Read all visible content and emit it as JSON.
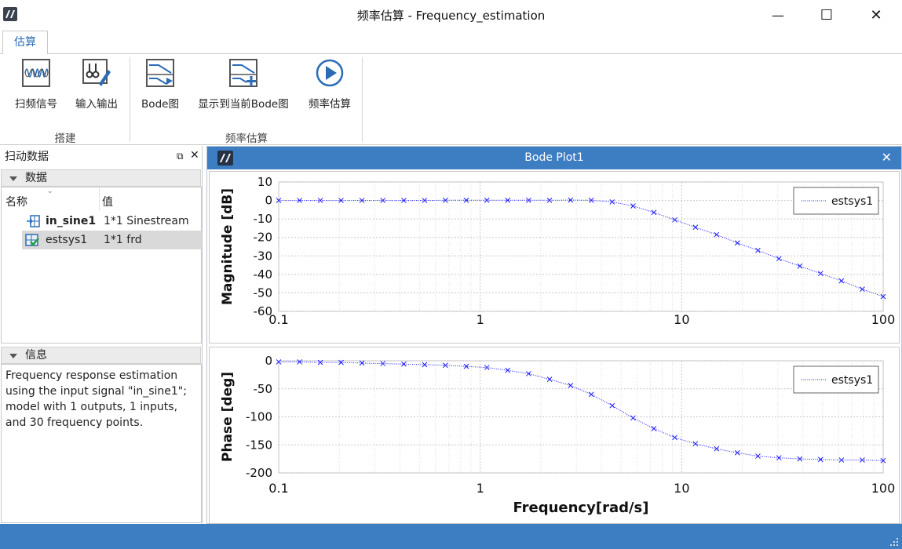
{
  "window": {
    "title": "频率估算 - Frequency_estimation",
    "min": "—",
    "max": "☐",
    "close": "✕"
  },
  "ribbon": {
    "tab": "估算",
    "buttons": {
      "sweep": "扫频信号",
      "io": "输入输出",
      "bode": "Bode图",
      "show_bode": "显示到当前Bode图",
      "estimate": "频率估算"
    },
    "groups": {
      "build": "搭建",
      "freq_est": "频率估算"
    }
  },
  "left_panel": {
    "title": "扫动数据",
    "data_section": "数据",
    "columns": {
      "name": "名称",
      "value": "值"
    },
    "items": [
      {
        "name": "in_sine1",
        "value": "1*1 Sinestream"
      },
      {
        "name": "estsys1",
        "value": "1*1 frd"
      }
    ],
    "info_section": "信息",
    "info_text": "Frequency response estimation using the input signal \"in_sine1\"; model with 1 outputs, 1 inputs, and 30 frequency points."
  },
  "bode": {
    "title": "Bode Plot1",
    "close": "✕"
  },
  "chart_data": [
    {
      "type": "line",
      "ylabel": "Magnitude [dB]",
      "xscale": "log",
      "xlim": [
        0.1,
        100
      ],
      "ylim": [
        -60,
        10
      ],
      "xticks": [
        "0.1",
        "1",
        "10",
        "100"
      ],
      "yticks": [
        10,
        0,
        -10,
        -20,
        -30,
        -40,
        -50,
        -60
      ],
      "grid": true,
      "legend": "top-right",
      "series": [
        {
          "name": "estsys1",
          "color": "#1a1aff",
          "x": [
            0.1,
            0.127,
            0.161,
            0.204,
            0.259,
            0.329,
            0.418,
            0.53,
            0.672,
            0.853,
            1.08,
            1.37,
            1.74,
            2.21,
            2.81,
            3.56,
            4.52,
            5.74,
            7.28,
            9.24,
            11.7,
            14.9,
            18.9,
            23.9,
            30.4,
            38.6,
            48.9,
            62.1,
            78.8,
            100
          ],
          "y": [
            0,
            0,
            0,
            0,
            0,
            0,
            0,
            0,
            0.1,
            0.1,
            0.1,
            0.1,
            0.1,
            0.1,
            0.2,
            0.1,
            -0.8,
            -3,
            -6.5,
            -10.5,
            -14.5,
            -18.5,
            -23,
            -27,
            -31.5,
            -35.5,
            -39.5,
            -43.5,
            -48,
            -52
          ]
        }
      ]
    },
    {
      "type": "line",
      "ylabel": "Phase [deg]",
      "xlabel": "Frequency[rad/s]",
      "xscale": "log",
      "xlim": [
        0.1,
        100
      ],
      "ylim": [
        -200,
        0
      ],
      "xticks": [
        "0.1",
        "1",
        "10",
        "100"
      ],
      "yticks": [
        0,
        -50,
        -100,
        -150,
        -200
      ],
      "grid": true,
      "legend": "top-right",
      "series": [
        {
          "name": "estsys1",
          "color": "#1a1aff",
          "x": [
            0.1,
            0.127,
            0.161,
            0.204,
            0.259,
            0.329,
            0.418,
            0.53,
            0.672,
            0.853,
            1.08,
            1.37,
            1.74,
            2.21,
            2.81,
            3.56,
            4.52,
            5.74,
            7.28,
            9.24,
            11.7,
            14.9,
            18.9,
            23.9,
            30.4,
            38.6,
            48.9,
            62.1,
            78.8,
            100
          ],
          "y": [
            -2,
            -2,
            -3,
            -3,
            -4,
            -5,
            -6,
            -7,
            -8,
            -10,
            -12,
            -17,
            -23,
            -33,
            -44,
            -60,
            -80,
            -102,
            -121,
            -137,
            -148,
            -157,
            -164,
            -170,
            -173,
            -175,
            -176,
            -177,
            -177,
            -178
          ]
        }
      ]
    }
  ]
}
